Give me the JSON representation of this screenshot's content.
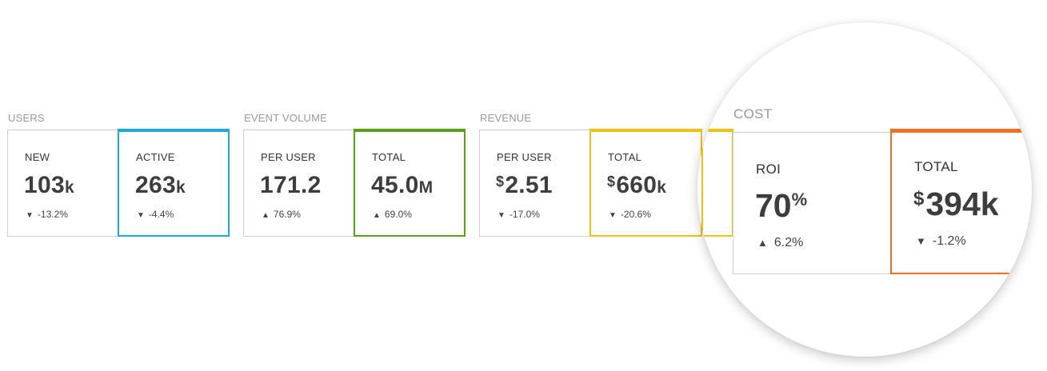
{
  "groups": {
    "users": {
      "title": "USERS",
      "cards": [
        {
          "label": "NEW",
          "value": "103",
          "unit": "k",
          "arrow": "▼",
          "change": "-13.2%"
        },
        {
          "label": "ACTIVE",
          "value": "263",
          "unit": "k",
          "arrow": "▼",
          "change": "-4.4%"
        }
      ]
    },
    "event_volume": {
      "title": "EVENT VOLUME",
      "cards": [
        {
          "label": "PER USER",
          "value": "171.2",
          "arrow": "▲",
          "change": "76.9%"
        },
        {
          "label": "TOTAL",
          "value": "45.0",
          "unit": "M",
          "arrow": "▲",
          "change": "69.0%"
        }
      ]
    },
    "revenue": {
      "title": "REVENUE",
      "cards": [
        {
          "label": "PER USER",
          "currency": "$",
          "value": "2.51",
          "arrow": "▼",
          "change": "-17.0%"
        },
        {
          "label": "TOTAL",
          "currency": "$",
          "value": "660",
          "unit": "k",
          "arrow": "▼",
          "change": "-20.6%"
        }
      ]
    },
    "cost": {
      "title": "COST",
      "cards": [
        {
          "label": "ROI",
          "value": "70",
          "suffix": "%",
          "arrow": "▲",
          "change": "6.2%"
        },
        {
          "label": "TOTAL",
          "currency": "$",
          "value": "394",
          "unit": "k",
          "arrow": "▼",
          "change": "-1.2%"
        }
      ]
    }
  },
  "colors": {
    "active_accent": "#1fa9d8",
    "event_total_accent": "#5a9e1c",
    "revenue_total_accent": "#f2c012",
    "cost_total_accent": "#f07020",
    "border": "#cfcfcf"
  }
}
